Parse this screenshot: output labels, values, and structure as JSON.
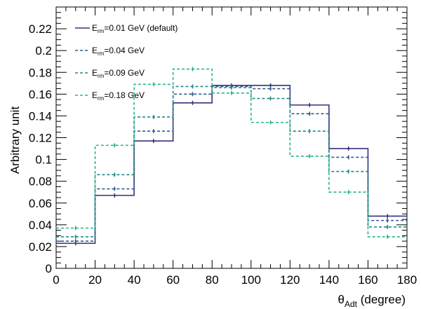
{
  "chart_data": {
    "type": "step-histogram",
    "ylabel": "Arbitrary unit",
    "xlabel": {
      "main": "θ",
      "sub": "Adt",
      "rest": " (degree)"
    },
    "xlim": [
      0,
      180
    ],
    "ylim": [
      0,
      0.24
    ],
    "xticks": [
      "0",
      "20",
      "40",
      "60",
      "80",
      "100",
      "120",
      "140",
      "160",
      "180"
    ],
    "yticks": [
      "0",
      "0.02",
      "0.04",
      "0.06",
      "0.08",
      "0.1",
      "0.12",
      "0.14",
      "0.16",
      "0.18",
      "0.2",
      "0.22"
    ],
    "bin_edges": [
      0,
      20,
      40,
      60,
      80,
      100,
      120,
      140,
      160,
      180
    ],
    "series": [
      {
        "name": {
          "pre": "E",
          "sub": "rm",
          "post": "=0.01 GeV (default)"
        },
        "color": "#3b2f7a",
        "dash": "solid",
        "values": [
          0.023,
          0.067,
          0.117,
          0.152,
          0.168,
          0.168,
          0.15,
          0.11,
          0.048
        ]
      },
      {
        "name": {
          "pre": "E",
          "sub": "rm",
          "post": "=0.04 GeV"
        },
        "color": "#2b5d8f",
        "dash": "dashed",
        "values": [
          0.025,
          0.073,
          0.126,
          0.16,
          0.167,
          0.165,
          0.142,
          0.102,
          0.044
        ]
      },
      {
        "name": {
          "pre": "E",
          "sub": "rm",
          "post": "=0.09 GeV"
        },
        "color": "#1f8a8a",
        "dash": "dashed",
        "values": [
          0.029,
          0.086,
          0.139,
          0.167,
          0.166,
          0.156,
          0.126,
          0.089,
          0.038
        ]
      },
      {
        "name": {
          "pre": "E",
          "sub": "rm",
          "post": "=0.18 GeV"
        },
        "color": "#26b48a",
        "dash": "dashed",
        "values": [
          0.037,
          0.113,
          0.169,
          0.183,
          0.161,
          0.134,
          0.103,
          0.07,
          0.029
        ]
      }
    ],
    "legend_position": "top-left",
    "grid": false
  }
}
